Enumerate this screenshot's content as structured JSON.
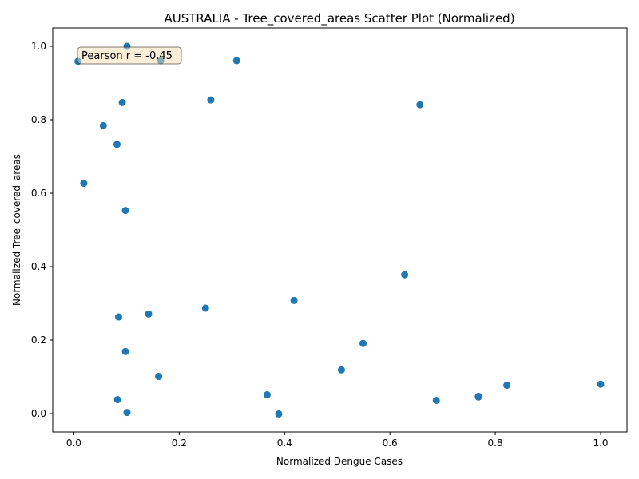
{
  "chart_data": {
    "type": "scatter",
    "title": "AUSTRALIA - Tree_covered_areas Scatter Plot (Normalized)",
    "xlabel": "Normalized Dengue Cases",
    "ylabel": "Normalized Tree_covered_areas",
    "xlim": [
      -0.04,
      1.05
    ],
    "ylim": [
      -0.05,
      1.05
    ],
    "xticks": [
      0.0,
      0.2,
      0.4,
      0.6,
      0.8,
      1.0
    ],
    "yticks": [
      0.0,
      0.2,
      0.4,
      0.6,
      0.8,
      1.0
    ],
    "xtick_labels": [
      "0.0",
      "0.2",
      "0.4",
      "0.6",
      "0.8",
      "1.0"
    ],
    "ytick_labels": [
      "0.0",
      "0.2",
      "0.4",
      "0.6",
      "0.8",
      "1.0"
    ],
    "grid": false,
    "legend": false,
    "annotation": {
      "text": "Pearson r = -0.45",
      "placement": "top-left"
    },
    "color": "#1f77b4",
    "points": [
      {
        "x": 0.008,
        "y": 0.959
      },
      {
        "x": 0.101,
        "y": 1.0
      },
      {
        "x": 0.165,
        "y": 0.961
      },
      {
        "x": 0.309,
        "y": 0.961
      },
      {
        "x": 0.092,
        "y": 0.847
      },
      {
        "x": 0.26,
        "y": 0.854
      },
      {
        "x": 0.657,
        "y": 0.841
      },
      {
        "x": 0.056,
        "y": 0.784
      },
      {
        "x": 0.082,
        "y": 0.733
      },
      {
        "x": 0.019,
        "y": 0.627
      },
      {
        "x": 0.098,
        "y": 0.553
      },
      {
        "x": 0.628,
        "y": 0.378
      },
      {
        "x": 0.418,
        "y": 0.308
      },
      {
        "x": 0.25,
        "y": 0.287
      },
      {
        "x": 0.142,
        "y": 0.271
      },
      {
        "x": 0.085,
        "y": 0.263
      },
      {
        "x": 0.549,
        "y": 0.191
      },
      {
        "x": 0.098,
        "y": 0.169
      },
      {
        "x": 0.508,
        "y": 0.119
      },
      {
        "x": 0.161,
        "y": 0.101
      },
      {
        "x": 0.822,
        "y": 0.077
      },
      {
        "x": 1.0,
        "y": 0.08
      },
      {
        "x": 0.768,
        "y": 0.047
      },
      {
        "x": 0.768,
        "y": 0.045
      },
      {
        "x": 0.367,
        "y": 0.051
      },
      {
        "x": 0.688,
        "y": 0.036
      },
      {
        "x": 0.083,
        "y": 0.038
      },
      {
        "x": 0.101,
        "y": 0.003
      },
      {
        "x": 0.389,
        "y": -0.001
      }
    ]
  }
}
